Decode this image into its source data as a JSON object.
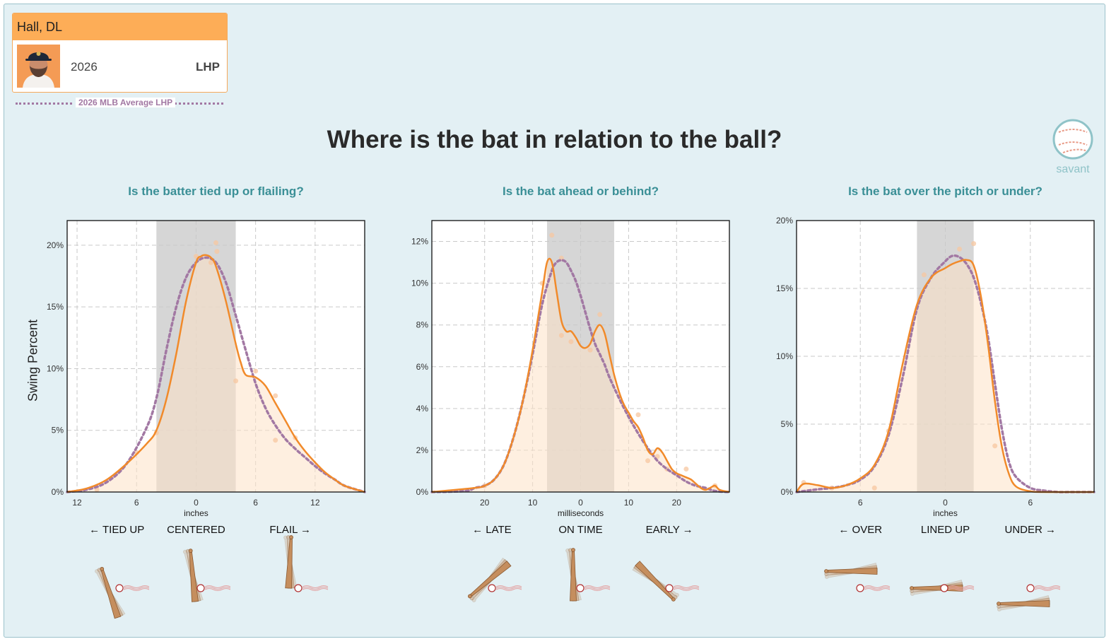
{
  "header": {
    "player_name": "Hall, DL",
    "year": "2026",
    "hand": "LHP",
    "avg_legend": "2026 MLB Average LHP"
  },
  "title": "Where is the bat in relation to the ball?",
  "logo_text": "savant",
  "y_label": "Swing Percent",
  "colors": {
    "player": "#f18a2a",
    "player_fill": "#fde2c6",
    "average": "#a278a3",
    "band": "#d6d6d6",
    "title": "#3a8f96"
  },
  "chart_data": [
    {
      "type": "line",
      "title": "Is the batter tied up or flailing?",
      "xlabel": "inches",
      "xlim": [
        -13,
        17
      ],
      "ylim": [
        0,
        22
      ],
      "x_ticks": [
        {
          "v": -12,
          "l": "12"
        },
        {
          "v": -6,
          "l": "6"
        },
        {
          "v": 0,
          "l": "0"
        },
        {
          "v": 6,
          "l": "6"
        },
        {
          "v": 12,
          "l": "12"
        }
      ],
      "y_ticks": [
        {
          "v": 0,
          "l": "0%"
        },
        {
          "v": 5,
          "l": "5%"
        },
        {
          "v": 10,
          "l": "10%"
        },
        {
          "v": 15,
          "l": "15%"
        },
        {
          "v": 20,
          "l": "20%"
        }
      ],
      "band": [
        -4,
        4
      ],
      "categories": [
        {
          "v": -8,
          "l": "← TIED UP"
        },
        {
          "v": 0,
          "l": "CENTERED"
        },
        {
          "v": 9.5,
          "l": "FLAIL →"
        }
      ],
      "series": [
        {
          "x": [
            -13,
            -11,
            -9,
            -7,
            -5,
            -4,
            -3,
            -2,
            -1,
            0,
            0.5,
            1,
            1.5,
            2,
            3,
            4,
            4.5,
            5,
            6,
            7,
            8,
            9,
            10,
            11,
            12,
            13,
            14,
            15,
            17
          ],
          "y": [
            0,
            0.3,
            1.0,
            2.3,
            3.9,
            5.0,
            7.5,
            11.2,
            15.5,
            18.6,
            19.1,
            19.2,
            19.0,
            18.3,
            15.5,
            12.0,
            10.5,
            9.5,
            9.3,
            8.6,
            7.2,
            5.8,
            4.4,
            3.3,
            2.4,
            1.6,
            1.0,
            0.5,
            0
          ]
        },
        {
          "x": [
            -13,
            -11,
            -9,
            -7,
            -5,
            -4,
            -3,
            -2,
            -1,
            0,
            1,
            2,
            3,
            4,
            5,
            6,
            7,
            8,
            9,
            10,
            11,
            12,
            13,
            14,
            15,
            17
          ],
          "y": [
            0,
            0.2,
            0.8,
            2.3,
            5.2,
            7.6,
            11.5,
            15.0,
            17.4,
            18.6,
            19.0,
            18.6,
            17.0,
            14.3,
            11.5,
            8.8,
            6.8,
            5.4,
            4.3,
            3.5,
            2.8,
            2.1,
            1.5,
            1.0,
            0.5,
            0
          ]
        }
      ],
      "points": [
        {
          "x": 0,
          "y": 19.1
        },
        {
          "x": 1.5,
          "y": 18.6
        },
        {
          "x": 2,
          "y": 20.2
        },
        {
          "x": 2.1,
          "y": 19.5
        },
        {
          "x": 4,
          "y": 9.0
        },
        {
          "x": 6,
          "y": 9.8
        },
        {
          "x": 8,
          "y": 7.8
        },
        {
          "x": 8,
          "y": 4.2
        },
        {
          "x": 10,
          "y": 4.4
        },
        {
          "x": -4,
          "y": 4.8
        },
        {
          "x": -6,
          "y": 3.2
        },
        {
          "x": -10,
          "y": 0.2
        }
      ]
    },
    {
      "type": "line",
      "title": "Is the bat ahead or behind?",
      "xlabel": "milliseconds",
      "xlim": [
        -31,
        31
      ],
      "ylim": [
        0,
        13
      ],
      "x_ticks": [
        {
          "v": -20,
          "l": "20"
        },
        {
          "v": -10,
          "l": "10"
        },
        {
          "v": 0,
          "l": "0"
        },
        {
          "v": 10,
          "l": "10"
        },
        {
          "v": 20,
          "l": "20"
        }
      ],
      "y_ticks": [
        {
          "v": 0,
          "l": "0%"
        },
        {
          "v": 2,
          "l": "2%"
        },
        {
          "v": 4,
          "l": "4%"
        },
        {
          "v": 6,
          "l": "6%"
        },
        {
          "v": 8,
          "l": "8%"
        },
        {
          "v": 10,
          "l": "10%"
        },
        {
          "v": 12,
          "l": "12%"
        }
      ],
      "band": [
        -7,
        7
      ],
      "categories": [
        {
          "v": -18.5,
          "l": "← LATE"
        },
        {
          "v": 0,
          "l": "ON TIME"
        },
        {
          "v": 18.5,
          "l": "EARLY →"
        }
      ],
      "series": [
        {
          "x": [
            -31,
            -22,
            -20,
            -18,
            -16,
            -14,
            -12,
            -10,
            -8,
            -7,
            -6,
            -5,
            -4,
            -3,
            -2,
            -1,
            0,
            1,
            2,
            3,
            4,
            5,
            6,
            7,
            8,
            9,
            10,
            11,
            12,
            13,
            14,
            15,
            16,
            17,
            18,
            19,
            20,
            21,
            22,
            23,
            24,
            25,
            26,
            27,
            28,
            29,
            31
          ],
          "y": [
            0,
            0.2,
            0.3,
            0.6,
            1.3,
            2.6,
            4.4,
            6.8,
            9.6,
            11.0,
            11.0,
            9.6,
            8.2,
            7.7,
            7.7,
            7.4,
            7.0,
            6.9,
            7.1,
            7.7,
            8.0,
            7.6,
            6.6,
            5.6,
            4.8,
            4.2,
            3.8,
            3.4,
            3.1,
            2.6,
            2.0,
            1.8,
            2.1,
            1.9,
            1.5,
            1.1,
            0.9,
            0.8,
            0.7,
            0.6,
            0.4,
            0.2,
            0.1,
            0.2,
            0.3,
            0.1,
            0
          ]
        },
        {
          "x": [
            -31,
            -24,
            -22,
            -20,
            -18,
            -16,
            -14,
            -12,
            -10,
            -8,
            -6,
            -5,
            -4,
            -3,
            -2,
            -1,
            0,
            1,
            2,
            3,
            4,
            5,
            6,
            8,
            10,
            12,
            14,
            16,
            18,
            20,
            22,
            24,
            26,
            28,
            31
          ],
          "y": [
            0,
            0.05,
            0.2,
            0.3,
            0.6,
            1.3,
            2.6,
            4.4,
            6.6,
            9.0,
            10.6,
            11.0,
            11.1,
            11.0,
            10.6,
            10.1,
            9.4,
            8.6,
            7.8,
            7.1,
            6.6,
            6.1,
            5.5,
            4.5,
            3.6,
            2.8,
            2.1,
            1.5,
            1.1,
            0.8,
            0.5,
            0.3,
            0.2,
            0.05,
            0
          ]
        }
      ],
      "points": [
        {
          "x": -6,
          "y": 12.3
        },
        {
          "x": -4,
          "y": 11.2
        },
        {
          "x": -4,
          "y": 7.5
        },
        {
          "x": -2,
          "y": 7.2
        },
        {
          "x": 2,
          "y": 6.8
        },
        {
          "x": 4,
          "y": 8.5
        },
        {
          "x": -8,
          "y": 10.0
        },
        {
          "x": 12,
          "y": 3.7
        },
        {
          "x": 14,
          "y": 1.5
        },
        {
          "x": 16,
          "y": 1.7
        },
        {
          "x": 18,
          "y": 1.1
        },
        {
          "x": 22,
          "y": 1.1
        },
        {
          "x": 28,
          "y": 0.3
        },
        {
          "x": -20,
          "y": 0.3
        }
      ]
    },
    {
      "type": "line",
      "title": "Is the bat over the pitch or under?",
      "xlabel": "inches",
      "xlim": [
        -10.5,
        10.5
      ],
      "ylim": [
        0,
        20
      ],
      "x_ticks": [
        {
          "v": -6,
          "l": "6"
        },
        {
          "v": 0,
          "l": "0"
        },
        {
          "v": 6,
          "l": "6"
        }
      ],
      "y_ticks": [
        {
          "v": 0,
          "l": "0%"
        },
        {
          "v": 5,
          "l": "5%"
        },
        {
          "v": 10,
          "l": "10%"
        },
        {
          "v": 15,
          "l": "15%"
        },
        {
          "v": 20,
          "l": "20%"
        }
      ],
      "band": [
        -2,
        2
      ],
      "categories": [
        {
          "v": -6,
          "l": "← OVER"
        },
        {
          "v": 0,
          "l": "LINED UP"
        },
        {
          "v": 6,
          "l": "UNDER →"
        }
      ],
      "series": [
        {
          "x": [
            -10.5,
            -10,
            -9,
            -8,
            -7,
            -6,
            -5,
            -4,
            -3,
            -2,
            -1,
            0,
            0.5,
            1,
            1.5,
            2,
            2.5,
            3,
            3.5,
            4,
            4.5,
            5,
            6,
            7,
            8,
            9,
            10,
            10.5
          ],
          "y": [
            0,
            0.6,
            0.5,
            0.3,
            0.5,
            1.0,
            2.0,
            4.5,
            9.5,
            13.8,
            15.8,
            16.5,
            16.8,
            17.0,
            17.1,
            16.7,
            14.5,
            11.0,
            6.7,
            3.3,
            1.3,
            0.4,
            0.05,
            0,
            0,
            0,
            0,
            0
          ]
        },
        {
          "x": [
            -10.5,
            -9,
            -8,
            -7,
            -6,
            -5,
            -4,
            -3,
            -2,
            -1,
            0,
            0.5,
            1,
            1.5,
            2,
            2.5,
            3,
            3.5,
            4,
            4.5,
            5,
            6,
            7,
            8,
            9,
            10.5
          ],
          "y": [
            0,
            0.2,
            0.3,
            0.5,
            0.9,
            1.9,
            4.2,
            8.5,
            13.5,
            15.8,
            17.0,
            17.4,
            17.3,
            16.8,
            15.8,
            14.0,
            11.5,
            8.0,
            4.6,
            2.2,
            1.1,
            0.3,
            0.1,
            0,
            0,
            0
          ]
        }
      ],
      "points": [
        {
          "x": 1,
          "y": 17.9
        },
        {
          "x": 2,
          "y": 18.3
        },
        {
          "x": -1.5,
          "y": 16.0
        },
        {
          "x": -4,
          "y": 4.5
        },
        {
          "x": 3.5,
          "y": 3.4
        },
        {
          "x": -10,
          "y": 0.7
        },
        {
          "x": -5,
          "y": 0.3
        },
        {
          "x": -8,
          "y": 0.3
        }
      ]
    }
  ]
}
